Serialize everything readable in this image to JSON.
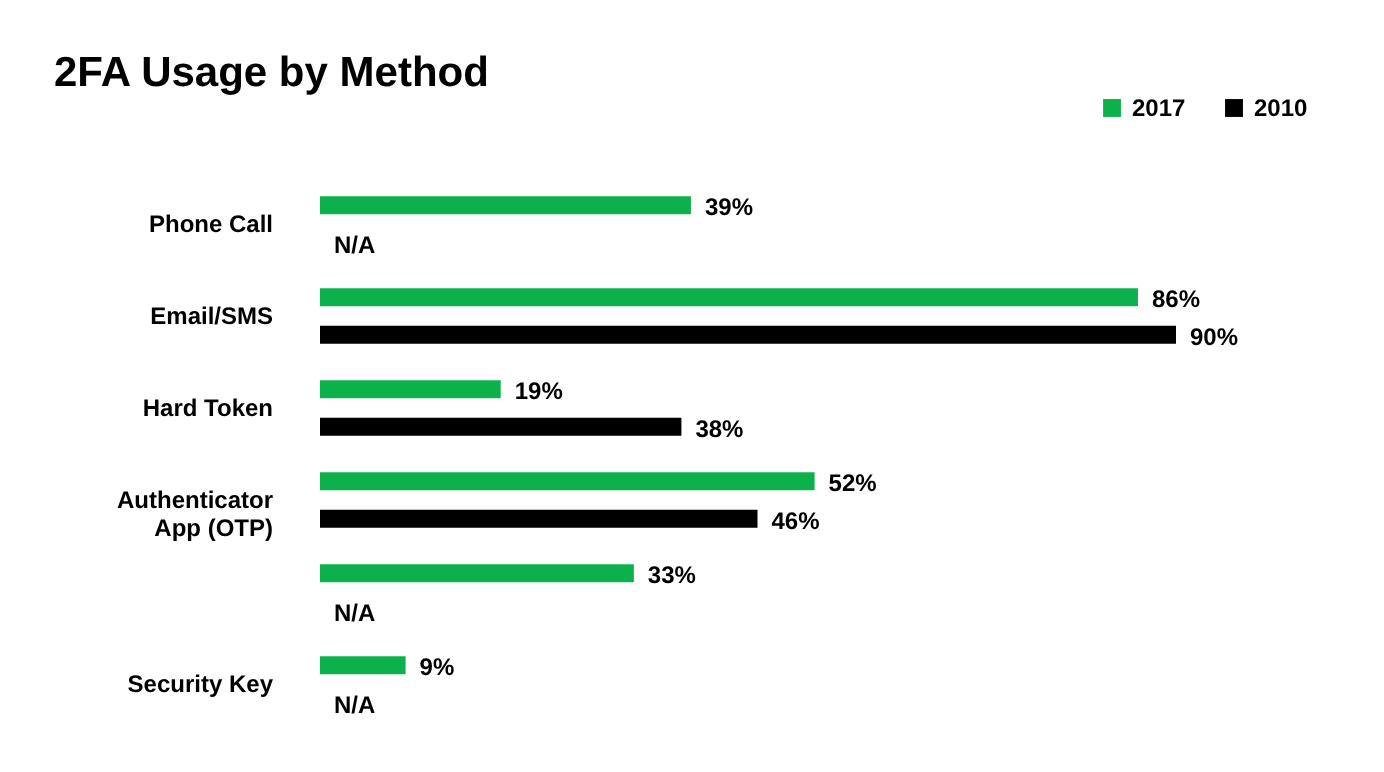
{
  "chart_data": {
    "type": "bar",
    "orientation": "horizontal",
    "title": "2FA Usage by Method",
    "categories": [
      "Phone Call",
      "Email/SMS",
      "Hard Token",
      "Authenticator App (OTP)",
      null,
      "Security Key"
    ],
    "series": [
      {
        "name": "2017",
        "color": "#0db14b",
        "values": [
          39,
          86,
          19,
          52,
          33,
          9
        ],
        "value_labels": [
          "39%",
          "86%",
          "19%",
          "52%",
          "33%",
          "9%"
        ]
      },
      {
        "name": "2010",
        "color": "#000000",
        "values": [
          null,
          90,
          38,
          46,
          null,
          null
        ],
        "value_labels": [
          "N/A",
          "90%",
          "38%",
          "46%",
          "N/A",
          "N/A"
        ]
      }
    ],
    "legend": "top right"
  }
}
